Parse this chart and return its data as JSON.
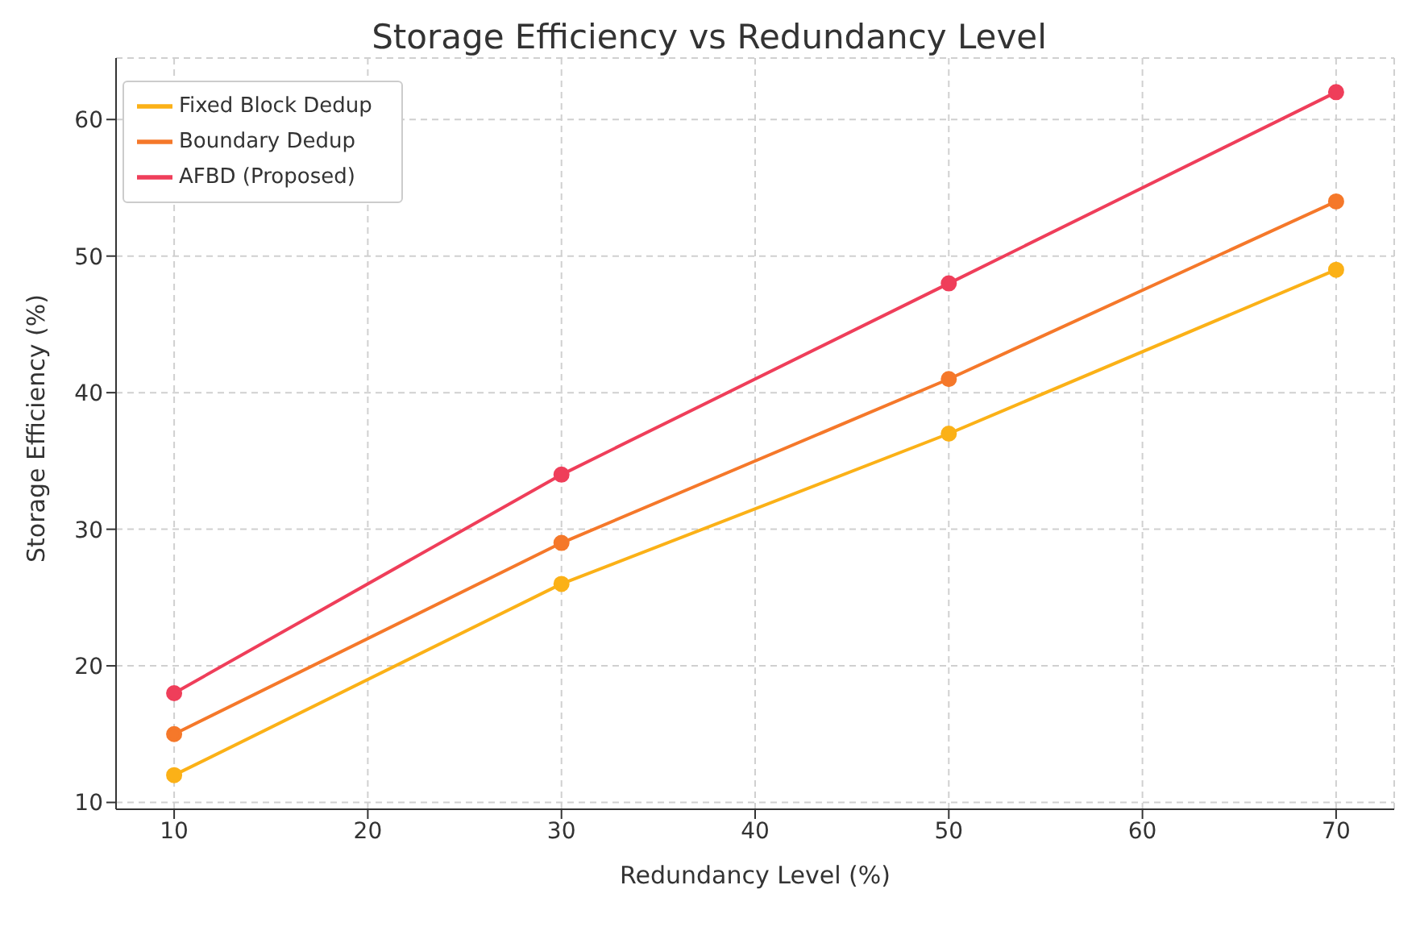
{
  "chart_data": {
    "type": "line",
    "title": "Storage Efficiency vs Redundancy Level",
    "xlabel": "Redundancy Level (%)",
    "ylabel": "Storage Efficiency (%)",
    "x": [
      10,
      30,
      50,
      70
    ],
    "series": [
      {
        "name": "Fixed Block Dedup",
        "color": "#fbb117",
        "values": [
          12,
          26,
          37,
          49
        ]
      },
      {
        "name": "Boundary Dedup",
        "color": "#f5782a",
        "values": [
          15,
          29,
          41,
          54
        ]
      },
      {
        "name": "AFBD (Proposed)",
        "color": "#ef3e5a",
        "values": [
          18,
          34,
          48,
          62
        ]
      }
    ],
    "xlim": [
      7,
      73
    ],
    "xticks": [
      10,
      20,
      30,
      40,
      50,
      60,
      70
    ],
    "ylim": [
      9.5,
      64.5
    ],
    "yticks": [
      10,
      20,
      30,
      40,
      50,
      60
    ],
    "grid": true,
    "legend": "top left",
    "marker": "circle",
    "line_style": "solid"
  }
}
